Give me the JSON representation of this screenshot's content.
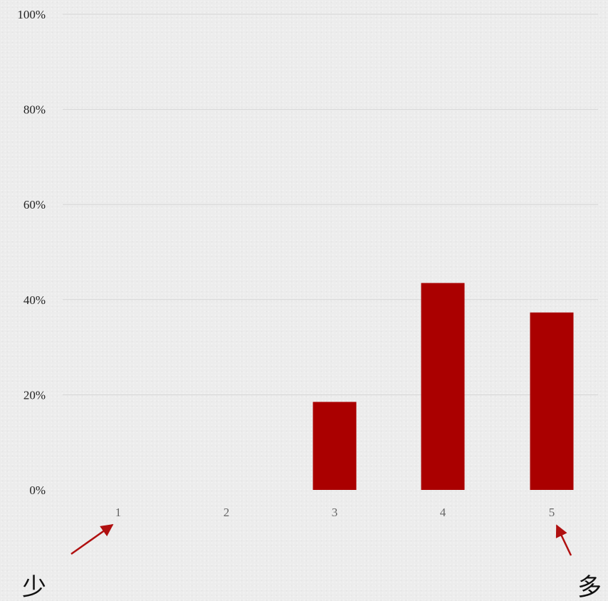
{
  "chart_data": {
    "type": "bar",
    "categories": [
      "1",
      "2",
      "3",
      "4",
      "5"
    ],
    "values": [
      0,
      0,
      18.5,
      43.5,
      37.3
    ],
    "ylim": [
      0,
      100
    ],
    "y_ticks": [
      "0%",
      "20%",
      "40%",
      "60%",
      "80%",
      "100%"
    ],
    "grid": true,
    "bar_color": "#aa0000",
    "arrow_color": "#b01010",
    "annotations": [
      {
        "text": "少",
        "points_to": "1"
      },
      {
        "text": "多",
        "points_to": "5"
      }
    ]
  }
}
